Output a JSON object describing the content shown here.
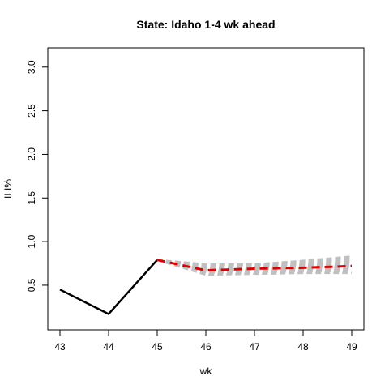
{
  "chart_data": {
    "type": "line",
    "title": "State: Idaho 1-4 wk ahead",
    "xlabel": "wk",
    "ylabel": "ILI%",
    "xlim": [
      43,
      49
    ],
    "ylim": [
      0.1,
      3.1
    ],
    "x_ticks": [
      "43",
      "44",
      "45",
      "46",
      "47",
      "48",
      "49"
    ],
    "y_ticks": [
      "0.5",
      "1.0",
      "1.5",
      "2.0",
      "2.5",
      "3.0"
    ],
    "grid": false,
    "legend": "none",
    "colors": {
      "observed": "#000000",
      "forecast_mean": "#e00000",
      "forecast_samples": "#c0c0c0"
    },
    "series": [
      {
        "role": "observed",
        "x": [
          43,
          44,
          45
        ],
        "y": [
          0.45,
          0.17,
          0.79
        ]
      },
      {
        "role": "forecast_mean",
        "x": [
          45,
          46,
          47,
          48,
          49
        ],
        "y": [
          0.79,
          0.67,
          0.69,
          0.7,
          0.72
        ]
      }
    ],
    "forecast_samples": [
      {
        "x": [
          45,
          46,
          47,
          48,
          49
        ],
        "y": [
          0.79,
          0.62,
          0.63,
          0.64,
          0.64
        ]
      },
      {
        "x": [
          45,
          46,
          47,
          48,
          49
        ],
        "y": [
          0.79,
          0.64,
          0.65,
          0.66,
          0.66
        ]
      },
      {
        "x": [
          45,
          46,
          47,
          48,
          49
        ],
        "y": [
          0.79,
          0.65,
          0.66,
          0.67,
          0.68
        ]
      },
      {
        "x": [
          45,
          46,
          47,
          48,
          49
        ],
        "y": [
          0.79,
          0.66,
          0.67,
          0.69,
          0.7
        ]
      },
      {
        "x": [
          45,
          46,
          47,
          48,
          49
        ],
        "y": [
          0.79,
          0.67,
          0.68,
          0.7,
          0.71
        ]
      },
      {
        "x": [
          45,
          46,
          47,
          48,
          49
        ],
        "y": [
          0.79,
          0.68,
          0.69,
          0.71,
          0.73
        ]
      },
      {
        "x": [
          45,
          46,
          47,
          48,
          49
        ],
        "y": [
          0.79,
          0.69,
          0.7,
          0.72,
          0.74
        ]
      },
      {
        "x": [
          45,
          46,
          47,
          48,
          49
        ],
        "y": [
          0.79,
          0.7,
          0.71,
          0.73,
          0.76
        ]
      },
      {
        "x": [
          45,
          46,
          47,
          48,
          49
        ],
        "y": [
          0.79,
          0.71,
          0.72,
          0.74,
          0.77
        ]
      },
      {
        "x": [
          45,
          46,
          47,
          48,
          49
        ],
        "y": [
          0.79,
          0.72,
          0.73,
          0.75,
          0.79
        ]
      },
      {
        "x": [
          45,
          46,
          47,
          48,
          49
        ],
        "y": [
          0.79,
          0.73,
          0.74,
          0.77,
          0.81
        ]
      },
      {
        "x": [
          45,
          46,
          47,
          48,
          49
        ],
        "y": [
          0.79,
          0.74,
          0.74,
          0.78,
          0.83
        ]
      }
    ]
  }
}
